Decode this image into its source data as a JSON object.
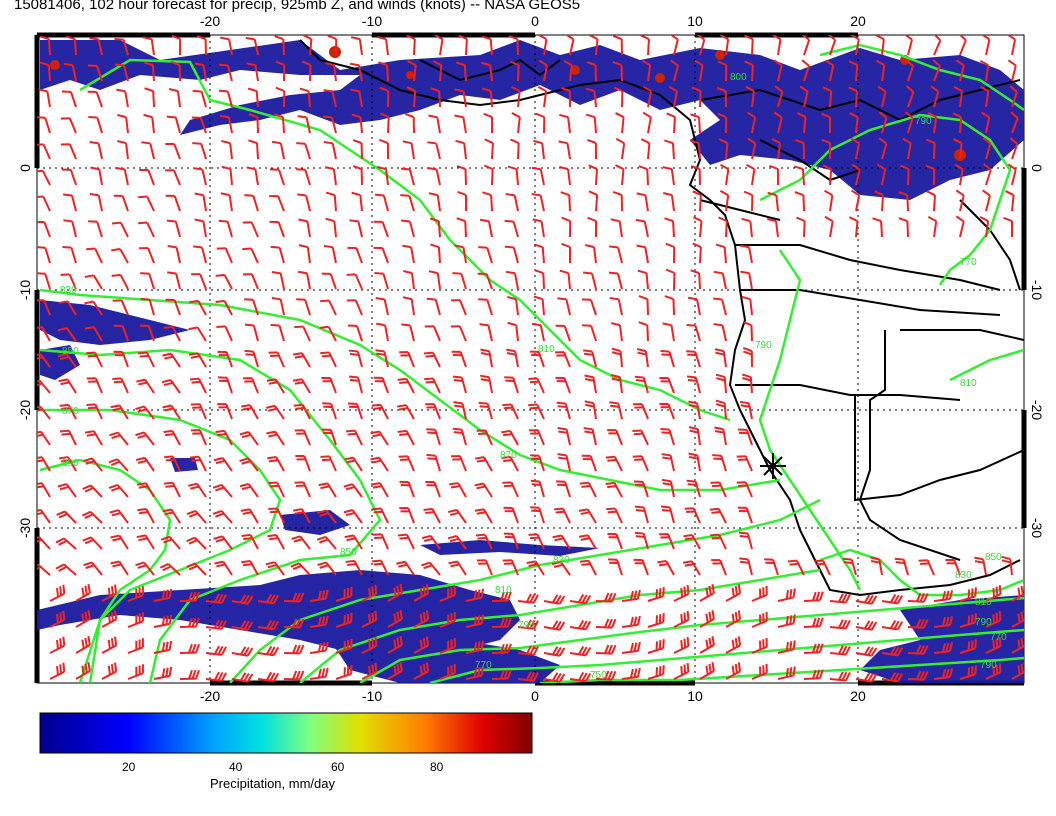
{
  "title": "15081406, 102 hour forecast for precip, 925mb Z, and winds (knots) -- NASA GEOS5",
  "top_lon_labels": [
    "-20",
    "-10",
    "0",
    "10",
    "20"
  ],
  "bottom_lon_labels": [
    "-20",
    "-10",
    "0",
    "10",
    "20"
  ],
  "left_lat_labels": [
    "0",
    "-10",
    "-20",
    "-30"
  ],
  "right_lat_labels": [
    "0",
    "-10",
    "-20",
    "-30"
  ],
  "contour_labels": [
    "830",
    "850",
    "870",
    "890",
    "810",
    "870",
    "850",
    "830",
    "810",
    "790",
    "770",
    "750",
    "790",
    "800",
    "770",
    "790",
    "810",
    "830",
    "850",
    "810",
    "790",
    "770",
    "790"
  ],
  "colorbar": {
    "ticks": [
      "20",
      "40",
      "60",
      "80"
    ],
    "title": "Precipitation, mm/day"
  },
  "colors": {
    "contour": "#33ee33",
    "barb": "#ee2222",
    "coast": "#000000",
    "precip_low": "#1a1aa0",
    "precip_high": "#cc0000"
  },
  "marker": "asterisk"
}
